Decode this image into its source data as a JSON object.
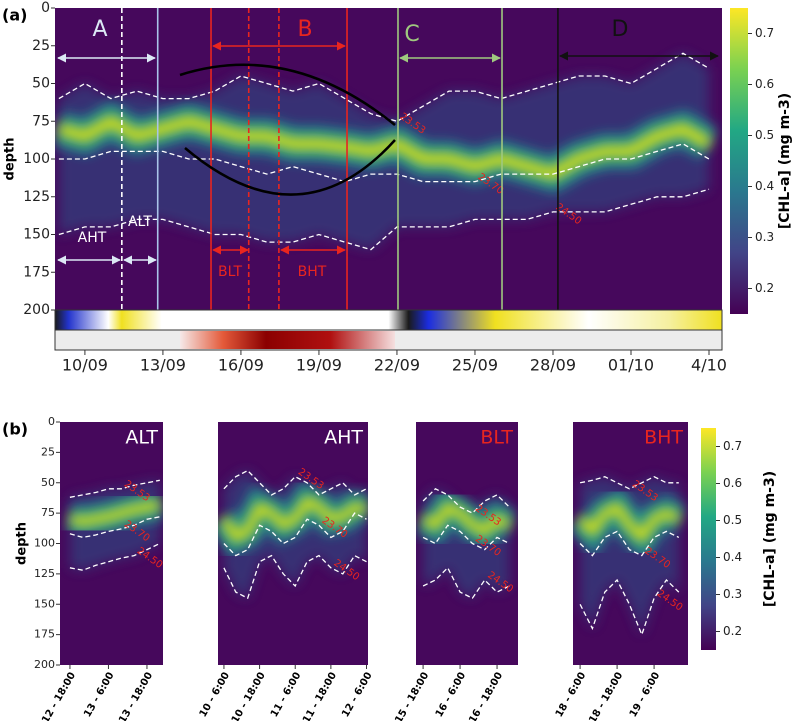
{
  "chart_data": [
    {
      "type": "heatmap",
      "label": "(a)",
      "ylabel": "depth",
      "y_reversed": true,
      "xlim": [
        8.85,
        34.5
      ],
      "ylim": [
        0,
        200
      ],
      "yticks": [
        0,
        25,
        50,
        75,
        100,
        125,
        150,
        175,
        200
      ],
      "xticks": [
        {
          "value": 10,
          "label": "10/09"
        },
        {
          "value": 13,
          "label": "13/09"
        },
        {
          "value": 16,
          "label": "16/09"
        },
        {
          "value": 19,
          "label": "19/09"
        },
        {
          "value": 22,
          "label": "22/09"
        },
        {
          "value": 25,
          "label": "25/09"
        },
        {
          "value": 28,
          "label": "28/09"
        },
        {
          "value": 31,
          "label": "01/10"
        },
        {
          "value": 34,
          "label": "4/10"
        }
      ],
      "x": [
        9,
        10,
        11,
        12,
        13,
        14,
        15,
        16,
        17,
        18,
        19,
        20,
        21,
        22,
        23,
        24,
        25,
        26,
        27,
        28,
        29,
        30,
        31,
        32,
        33,
        34
      ],
      "core": [
        80,
        85,
        75,
        85,
        80,
        75,
        80,
        85,
        85,
        90,
        90,
        92,
        95,
        90,
        100,
        100,
        105,
        100,
        105,
        110,
        100,
        95,
        95,
        85,
        80,
        90
      ],
      "series": [
        {
          "name": "23.53",
          "color": "#ffffff",
          "label_color": "#e8251f",
          "values": [
            60,
            50,
            60,
            55,
            60,
            60,
            55,
            45,
            50,
            55,
            50,
            60,
            70,
            75,
            65,
            55,
            55,
            60,
            55,
            50,
            45,
            45,
            50,
            40,
            30,
            40
          ]
        },
        {
          "name": "23.70",
          "color": "#ffffff",
          "label_color": "#e8251f",
          "values": [
            100,
            100,
            95,
            95,
            95,
            100,
            100,
            105,
            110,
            105,
            110,
            115,
            110,
            110,
            115,
            115,
            115,
            110,
            110,
            110,
            105,
            100,
            100,
            95,
            90,
            100
          ]
        },
        {
          "name": "24.50",
          "color": "#ffffff",
          "label_color": "#e8251f",
          "values": [
            150,
            145,
            145,
            140,
            140,
            145,
            150,
            150,
            155,
            155,
            150,
            155,
            160,
            145,
            145,
            145,
            140,
            140,
            140,
            135,
            135,
            135,
            130,
            125,
            125,
            120
          ]
        }
      ],
      "boundaries": [
        {
          "x": 11.42,
          "color": "#ffffff",
          "dashed": true
        },
        {
          "x": 12.8,
          "color": "#a9c4e8",
          "dashed": false
        },
        {
          "x": 14.85,
          "color": "#e8251f",
          "dashed": false
        },
        {
          "x": 16.3,
          "color": "#e8251f",
          "dashed": true
        },
        {
          "x": 17.46,
          "color": "#e8251f",
          "dashed": true
        },
        {
          "x": 20.08,
          "color": "#e8251f",
          "dashed": false
        },
        {
          "x": 22.04,
          "color": "#9fc97f",
          "dashed": false
        },
        {
          "x": 26.04,
          "color": "#9fc97f",
          "dashed": false
        },
        {
          "x": 28.19,
          "color": "#111111",
          "dashed": false
        }
      ],
      "annotations": [
        {
          "text": "A",
          "color": "#dce9f5"
        },
        {
          "text": "B",
          "color": "#e8251f"
        },
        {
          "text": "C",
          "color": "#9fc97f"
        },
        {
          "text": "D",
          "color": "#111111"
        },
        {
          "text": "AHT",
          "color": "#ffffff"
        },
        {
          "text": "ALT",
          "color": "#ffffff"
        },
        {
          "text": "BLT",
          "color": "#e8251f"
        },
        {
          "text": "BHT",
          "color": "#e8251f"
        }
      ]
    },
    {
      "type": "colorbar",
      "label": "[CHL-a] (mg m-3)",
      "lim": [
        0.15,
        0.75
      ],
      "ticks": [
        0.2,
        0.3,
        0.4,
        0.5,
        0.6,
        0.7
      ]
    },
    {
      "type": "heatmap",
      "label": "(b)",
      "ylabel": "depth",
      "title": "ALT",
      "title_color": "#ffffff",
      "y_reversed": true,
      "xlim": [
        -3.1,
        29
      ],
      "ylim": [
        0,
        200
      ],
      "yticks": [
        0,
        25,
        50,
        75,
        100,
        125,
        150,
        175,
        200
      ],
      "xticks": [
        {
          "value": 0,
          "label": "12 - 18:00"
        },
        {
          "value": 12,
          "label": "13 - 6:00"
        },
        {
          "value": 24,
          "label": "13 - 18:00"
        }
      ],
      "x": [
        0,
        4,
        8,
        12,
        16,
        20,
        24,
        28
      ],
      "core": [
        80,
        82,
        80,
        78,
        75,
        72,
        70,
        68
      ],
      "series": [
        {
          "name": "23.53",
          "color": "#ffffff",
          "label_color": "#e8251f",
          "values": [
            62,
            60,
            58,
            55,
            55,
            52,
            50,
            48
          ]
        },
        {
          "name": "23.70",
          "color": "#ffffff",
          "label_color": "#e8251f",
          "values": [
            92,
            95,
            93,
            90,
            88,
            85,
            80,
            78
          ]
        },
        {
          "name": "24.50",
          "color": "#ffffff",
          "label_color": "#e8251f",
          "values": [
            120,
            122,
            118,
            115,
            112,
            110,
            105,
            100
          ]
        }
      ]
    },
    {
      "type": "heatmap",
      "title": "AHT",
      "title_color": "#ffffff",
      "y_reversed": true,
      "xlim": [
        -2,
        48.5
      ],
      "ylim": [
        0,
        200
      ],
      "xticks": [
        {
          "value": 0,
          "label": "10 - 6:00"
        },
        {
          "value": 12,
          "label": "10 - 18:00"
        },
        {
          "value": 24,
          "label": "11 - 6:00"
        },
        {
          "value": 36,
          "label": "11 - 18:00"
        },
        {
          "value": 48,
          "label": "12 - 6:00"
        }
      ],
      "x": [
        0,
        4,
        8,
        12,
        16,
        20,
        24,
        28,
        32,
        36,
        40,
        44,
        48
      ],
      "core": [
        80,
        95,
        90,
        70,
        75,
        85,
        80,
        65,
        70,
        80,
        78,
        70,
        72
      ],
      "series": [
        {
          "name": "23.53",
          "color": "#ffffff",
          "label_color": "#e8251f",
          "values": [
            55,
            45,
            40,
            50,
            60,
            55,
            45,
            50,
            60,
            55,
            50,
            60,
            55
          ]
        },
        {
          "name": "23.70",
          "color": "#ffffff",
          "label_color": "#e8251f",
          "values": [
            100,
            110,
            105,
            85,
            90,
            100,
            95,
            80,
            85,
            95,
            90,
            75,
            80
          ]
        },
        {
          "name": "24.50",
          "color": "#ffffff",
          "label_color": "#e8251f",
          "values": [
            120,
            140,
            145,
            115,
            110,
            125,
            135,
            115,
            110,
            120,
            125,
            110,
            115
          ]
        }
      ]
    },
    {
      "type": "heatmap",
      "title": "BLT",
      "title_color": "#e8251f",
      "y_reversed": true,
      "xlim": [
        -2.3,
        30.8
      ],
      "ylim": [
        0,
        200
      ],
      "xticks": [
        {
          "value": 0,
          "label": "15 - 18:00"
        },
        {
          "value": 12,
          "label": "16 - 6:00"
        },
        {
          "value": 24,
          "label": "16 - 18:00"
        }
      ],
      "x": [
        0,
        4,
        8,
        12,
        16,
        20,
        24,
        28
      ],
      "core": [
        80,
        85,
        70,
        75,
        85,
        90,
        80,
        85
      ],
      "series": [
        {
          "name": "23.53",
          "color": "#ffffff",
          "label_color": "#e8251f",
          "values": [
            65,
            55,
            60,
            70,
            75,
            65,
            60,
            70
          ]
        },
        {
          "name": "23.70",
          "color": "#ffffff",
          "label_color": "#e8251f",
          "values": [
            95,
            100,
            85,
            90,
            100,
            105,
            95,
            100
          ]
        },
        {
          "name": "24.50",
          "color": "#ffffff",
          "label_color": "#e8251f",
          "values": [
            135,
            130,
            120,
            140,
            145,
            130,
            140,
            135
          ]
        }
      ]
    },
    {
      "type": "heatmap",
      "title": "BHT",
      "title_color": "#e8251f",
      "y_reversed": true,
      "xlim": [
        -2.3,
        35
      ],
      "ylim": [
        0,
        200
      ],
      "xticks": [
        {
          "value": 0,
          "label": "18 - 6:00"
        },
        {
          "value": 12,
          "label": "18 - 18:00"
        },
        {
          "value": 24,
          "label": "19 - 6:00"
        }
      ],
      "x": [
        0,
        4,
        8,
        12,
        16,
        20,
        24,
        28,
        32
      ],
      "core": [
        80,
        90,
        75,
        70,
        85,
        95,
        80,
        75,
        80
      ],
      "series": [
        {
          "name": "23.53",
          "color": "#ffffff",
          "label_color": "#e8251f",
          "values": [
            50,
            48,
            45,
            50,
            55,
            50,
            45,
            50,
            50
          ]
        },
        {
          "name": "23.70",
          "color": "#ffffff",
          "label_color": "#e8251f",
          "values": [
            100,
            110,
            95,
            90,
            105,
            110,
            95,
            90,
            95
          ]
        },
        {
          "name": "24.50",
          "color": "#ffffff",
          "label_color": "#e8251f",
          "values": [
            150,
            170,
            140,
            130,
            150,
            175,
            145,
            130,
            140
          ]
        }
      ]
    },
    {
      "type": "colorbar",
      "label": "[CHL-a] (mg m-3)",
      "lim": [
        0.15,
        0.75
      ],
      "ticks": [
        0.2,
        0.3,
        0.4,
        0.5,
        0.6,
        0.7
      ]
    }
  ]
}
